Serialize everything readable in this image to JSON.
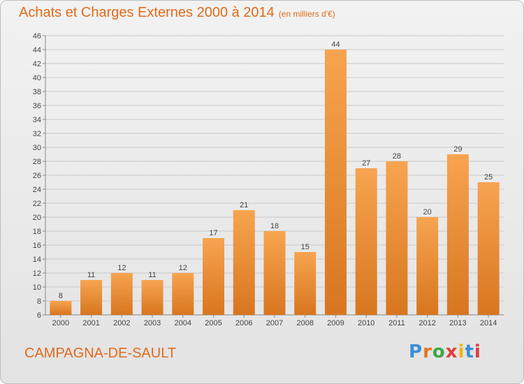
{
  "header": {
    "title": "Achats et Charges Externes 2000 à 2014",
    "subtitle": "(en milliers d'€)"
  },
  "footer": {
    "place": "CAMPAGNA-DE-SAULT",
    "logo": "Proxiti",
    "logo_colors": [
      "#3a8fd6",
      "#e8731a",
      "#3aa846",
      "#e23c3c",
      "#f2b705",
      "#3a8fd6",
      "#e23c3c"
    ]
  },
  "chart_data": {
    "type": "bar",
    "title": "Achats et Charges Externes 2000 à 2014",
    "subtitle": "(en milliers d'€)",
    "xlabel": "",
    "ylabel": "",
    "categories": [
      "2000",
      "2001",
      "2002",
      "2003",
      "2004",
      "2005",
      "2006",
      "2007",
      "2008",
      "2009",
      "2010",
      "2011",
      "2012",
      "2013",
      "2014"
    ],
    "values": [
      8,
      11,
      12,
      11,
      12,
      17,
      21,
      18,
      15,
      44,
      27,
      28,
      20,
      29,
      25
    ],
    "ylim": [
      6,
      46
    ],
    "yticks": [
      6,
      8,
      10,
      12,
      14,
      16,
      18,
      20,
      22,
      24,
      26,
      28,
      30,
      32,
      34,
      36,
      38,
      40,
      42,
      44,
      46
    ],
    "grid": true,
    "legend": "none",
    "colors": {
      "bar_top": "#f7a450",
      "bar_bottom": "#d8761f",
      "grid": "#c9c9c9",
      "text": "#444444"
    }
  }
}
